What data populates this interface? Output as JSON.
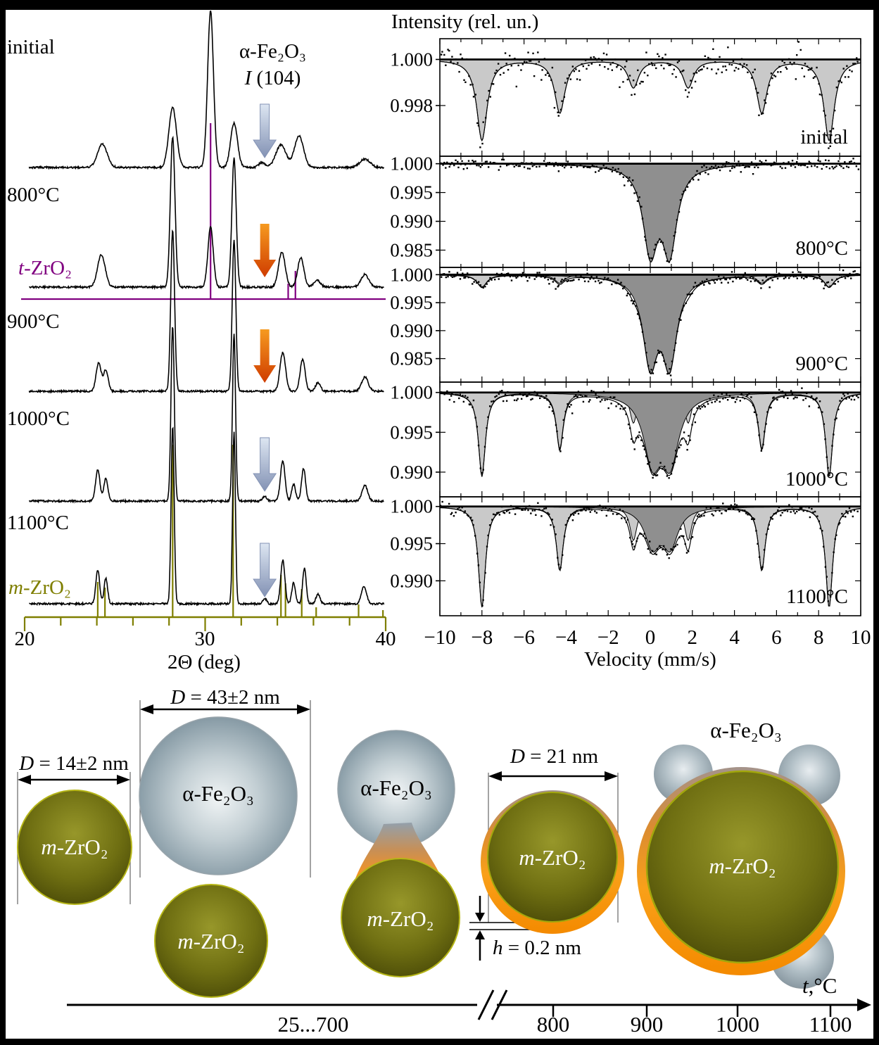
{
  "colors": {
    "t_zro2_purple": "#800080",
    "m_zro2_olive": "#7f7f00",
    "sextet_fill": "#c9c9c9",
    "doublet_fill": "#8f8f8f",
    "arrow_steel_top": "#dde6f2",
    "arrow_steel_bottom": "#8392b4",
    "arrow_orange_top": "#f69a20",
    "arrow_orange_bottom": "#cf3c00",
    "shell_orange": "#f79420"
  },
  "chart_data": [
    {
      "id": "xrd",
      "type": "line",
      "xlabel": "2Θ (deg)",
      "xlim": [
        20,
        40
      ],
      "xticks": [
        "20",
        "30",
        "40"
      ],
      "xtick_values": [
        20,
        30,
        40
      ],
      "minor_tick_step": 2,
      "annotation": {
        "line1": "α-Fe₂O₃",
        "var": "I",
        "rest": " (104)"
      },
      "traces": [
        {
          "label": "initial",
          "peaks": [
            [
              24.3,
              33,
              0.38
            ],
            [
              28.2,
              85,
              0.3
            ],
            [
              30.3,
              222,
              0.23
            ],
            [
              31.6,
              63,
              0.27
            ],
            [
              33.15,
              7,
              0.25
            ],
            [
              34.2,
              32,
              0.4
            ],
            [
              35.2,
              45,
              0.35
            ],
            [
              38.85,
              12,
              0.4
            ]
          ]
        },
        {
          "label": "800°C",
          "peaks": [
            [
              24.25,
              46,
              0.3
            ],
            [
              28.2,
              213,
              0.18
            ],
            [
              30.3,
              85,
              0.21
            ],
            [
              31.6,
              183,
              0.17
            ],
            [
              34.25,
              50,
              0.26
            ],
            [
              35.3,
              42,
              0.24
            ],
            [
              36.2,
              10,
              0.25
            ],
            [
              38.85,
              18,
              0.3
            ]
          ]
        },
        {
          "label": "900°C",
          "peaks": [
            [
              24.1,
              40,
              0.2
            ],
            [
              24.5,
              30,
              0.18
            ],
            [
              28.2,
              228,
              0.15
            ],
            [
              31.6,
              216,
              0.14
            ],
            [
              34.3,
              55,
              0.22
            ],
            [
              35.4,
              45,
              0.2
            ],
            [
              36.25,
              12,
              0.2
            ],
            [
              38.85,
              20,
              0.26
            ]
          ]
        },
        {
          "label": "1000°C",
          "peaks": [
            [
              24.05,
              44,
              0.17
            ],
            [
              24.5,
              32,
              0.16
            ],
            [
              28.2,
              248,
              0.13
            ],
            [
              31.6,
              238,
              0.12
            ],
            [
              33.3,
              7,
              0.16
            ],
            [
              34.3,
              57,
              0.18
            ],
            [
              34.9,
              24,
              0.15
            ],
            [
              35.45,
              46,
              0.16
            ],
            [
              38.85,
              22,
              0.22
            ]
          ]
        },
        {
          "label": "1100°C",
          "peaks": [
            [
              24.05,
              48,
              0.15
            ],
            [
              24.5,
              36,
              0.14
            ],
            [
              28.2,
              252,
              0.12
            ],
            [
              31.6,
              244,
              0.11
            ],
            [
              33.3,
              8,
              0.14
            ],
            [
              34.3,
              62,
              0.16
            ],
            [
              34.9,
              30,
              0.14
            ],
            [
              35.5,
              50,
              0.14
            ],
            [
              36.25,
              14,
              0.16
            ],
            [
              38.8,
              25,
              0.2
            ]
          ]
        }
      ],
      "reference_patterns": [
        {
          "label_prefix": "t",
          "label_rest": "-ZrO₂",
          "color": "#800080",
          "sticks": [
            [
              30.3,
              250
            ],
            [
              34.6,
              22
            ],
            [
              35.0,
              40
            ]
          ]
        },
        {
          "label_prefix": "m",
          "label_rest": "-ZrO₂",
          "color": "#7f7f00",
          "sticks": [
            [
              24.05,
              50
            ],
            [
              24.45,
              42
            ],
            [
              28.2,
              245
            ],
            [
              31.55,
              245
            ],
            [
              34.2,
              60
            ],
            [
              34.45,
              48
            ],
            [
              35.35,
              40
            ],
            [
              36.15,
              14
            ],
            [
              38.5,
              18
            ],
            [
              39.85,
              10
            ]
          ]
        }
      ],
      "arrows": [
        {
          "trace": "initial",
          "x": 33.3,
          "color": "steel"
        },
        {
          "trace": "800°C",
          "x": 33.3,
          "color": "orange"
        },
        {
          "trace": "900°C",
          "x": 33.3,
          "color": "orange"
        },
        {
          "trace": "1000°C",
          "x": 33.3,
          "color": "steel"
        },
        {
          "trace": "1100°C",
          "x": 33.3,
          "color": "steel"
        }
      ]
    },
    {
      "id": "mossbauer",
      "type": "line",
      "title": "Intensity (rel. un.)",
      "xlabel": "Velocity (mm/s)",
      "xlim": [
        -10,
        10
      ],
      "xtick_labels": [
        "−10",
        "−8",
        "−6",
        "−4",
        "−2",
        "0",
        "2",
        "4",
        "6",
        "8",
        "10"
      ],
      "xtick_values": [
        -10,
        -8,
        -6,
        -4,
        -2,
        0,
        2,
        4,
        6,
        8,
        10
      ],
      "panels": [
        {
          "label": "initial",
          "ylim": [
            0.9958,
            1.0009
          ],
          "yticks": [
            1.0,
            0.998
          ],
          "ytick_labels": [
            "1.000",
            "0.998"
          ],
          "noise": 0.0003,
          "components": [
            {
              "kind": "sextet",
              "fill": "light",
              "centers": [
                -8.0,
                -4.3,
                -0.8,
                1.8,
                5.3,
                8.5
              ],
              "depths": [
                0.0035,
                0.0023,
                0.0012,
                0.0012,
                0.0023,
                0.0035
              ],
              "width": 0.3
            }
          ]
        },
        {
          "label": "800°C",
          "ylim": [
            0.982,
            1.0013
          ],
          "yticks": [
            1.0,
            0.995,
            0.99,
            0.985
          ],
          "ytick_labels": [
            "1.000",
            "0.995",
            "0.990",
            "0.985"
          ],
          "noise": 0.00045,
          "components": [
            {
              "kind": "doublet",
              "fill": "dark",
              "centers": [
                0.0,
                0.92
              ],
              "depths": [
                0.0145,
                0.0145
              ],
              "width": 0.42
            }
          ]
        },
        {
          "label": "900°C",
          "ylim": [
            0.9808,
            1.0013
          ],
          "yticks": [
            1.0,
            0.995,
            0.99,
            0.985
          ],
          "ytick_labels": [
            "1.000",
            "0.995",
            "0.990",
            "0.985"
          ],
          "noise": 0.00045,
          "components": [
            {
              "kind": "sextet",
              "fill": "light",
              "centers": [
                -8.0,
                -4.3,
                -0.8,
                1.8,
                5.3,
                8.5
              ],
              "depths": [
                0.0022,
                0.0015,
                0.0008,
                0.0008,
                0.0015,
                0.0022
              ],
              "width": 0.28
            },
            {
              "kind": "doublet",
              "fill": "dark",
              "centers": [
                0.0,
                0.92
              ],
              "depths": [
                0.015,
                0.015
              ],
              "width": 0.42
            }
          ]
        },
        {
          "label": "1000°C",
          "ylim": [
            0.9869,
            1.0013
          ],
          "yticks": [
            1.0,
            0.995,
            0.99
          ],
          "ytick_labels": [
            "1.000",
            "0.995",
            "0.990"
          ],
          "noise": 0.00045,
          "components": [
            {
              "kind": "sextet",
              "fill": "light",
              "centers": [
                -8.0,
                -4.3,
                -0.8,
                1.8,
                5.3,
                8.5
              ],
              "depths": [
                0.0105,
                0.007,
                0.0038,
                0.0038,
                0.007,
                0.0105
              ],
              "width": 0.2
            },
            {
              "kind": "doublet",
              "fill": "dark",
              "centers": [
                0.1,
                0.95
              ],
              "depths": [
                0.008,
                0.008
              ],
              "width": 0.5
            }
          ]
        },
        {
          "label": "1100°C",
          "ylim": [
            0.9853,
            1.0013
          ],
          "yticks": [
            1.0,
            0.995,
            0.99
          ],
          "ytick_labels": [
            "1.000",
            "0.995",
            "0.990"
          ],
          "noise": 0.0004,
          "components": [
            {
              "kind": "sextet",
              "fill": "light",
              "centers": [
                -8.0,
                -4.3,
                -0.8,
                1.8,
                5.3,
                8.5
              ],
              "depths": [
                0.0135,
                0.0085,
                0.0045,
                0.0045,
                0.0085,
                0.0135
              ],
              "width": 0.2
            },
            {
              "kind": "doublet",
              "fill": "dark",
              "centers": [
                0.1,
                0.95
              ],
              "depths": [
                0.005,
                0.005
              ],
              "width": 0.45
            }
          ]
        }
      ]
    }
  ],
  "schematic": {
    "dims": {
      "d14": {
        "var": "D",
        "rest": " = 14±2 nm"
      },
      "d43": {
        "var": "D",
        "rest": " = 43±2 nm"
      },
      "d21": {
        "var": "D",
        "rest": " = 21 nm"
      },
      "h02": {
        "var": "h",
        "rest": " = 0.2 nm"
      }
    },
    "labels": {
      "hematite": "α-Fe₂O₃",
      "zirconia_prefix": "m",
      "zirconia_rest": "-ZrO₂"
    },
    "taxis": {
      "var": "t",
      "rest": ",°C",
      "range_label": "25...700",
      "ticks": [
        "800",
        "900",
        "1000",
        "1100"
      ]
    }
  }
}
